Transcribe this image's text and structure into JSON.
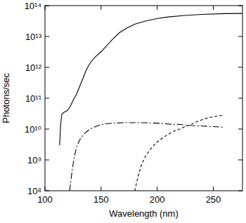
{
  "chart_data": {
    "type": "line",
    "x_label": "Wavelength (nm)",
    "y_label": "Photons/sec",
    "log": "y",
    "grid": false,
    "xlim": [
      100,
      276
    ],
    "ylim": [
      100000000.0,
      100000000000000.0
    ],
    "xticks": [
      100,
      150,
      200,
      250
    ],
    "yticks": [
      {
        "value": 100000000.0,
        "label": "10⁸"
      },
      {
        "value": 1000000000.0,
        "label": "10⁹"
      },
      {
        "value": 10000000000.0,
        "label": "10¹⁰"
      },
      {
        "value": 100000000000.0,
        "label": "10¹¹"
      },
      {
        "value": 1000000000000.0,
        "label": "10¹²"
      },
      {
        "value": 10000000000000.0,
        "label": "10¹³"
      },
      {
        "value": 100000000000000.0,
        "label": "10¹⁴"
      }
    ],
    "series": [
      {
        "color": "#000000",
        "line_style": "solid",
        "x": [
          113,
          114,
          115,
          117,
          120,
          122,
          124,
          126,
          128,
          130,
          132,
          134,
          136,
          138,
          141,
          145,
          150,
          155,
          160,
          166,
          172,
          180,
          190,
          200,
          210,
          225,
          240,
          260,
          276
        ],
        "values": [
          3000000000.0,
          15000000000.0,
          30000000000.0,
          35000000000.0,
          40000000000.0,
          50000000000.0,
          70000000000.0,
          100000000000.0,
          130000000000.0,
          200000000000.0,
          300000000000.0,
          450000000000.0,
          700000000000.0,
          1000000000000.0,
          1500000000000.0,
          2200000000000.0,
          3200000000000.0,
          5000000000000.0,
          8000000000000.0,
          13000000000000.0,
          18000000000000.0,
          25000000000000.0,
          32000000000000.0,
          38000000000000.0,
          43000000000000.0,
          48000000000000.0,
          52000000000000.0,
          55000000000000.0,
          56000000000000.0
        ]
      },
      {
        "color": "#000000",
        "line_style": "dashdot",
        "x": [
          122,
          124,
          126,
          128,
          131,
          135,
          140,
          145,
          150,
          160,
          170,
          180,
          190,
          200,
          210,
          220,
          230,
          240,
          250,
          260
        ],
        "values": [
          100000000.0,
          400000000.0,
          1200000000.0,
          2500000000.0,
          4500000000.0,
          7000000000.0,
          10000000000.0,
          12000000000.0,
          14000000000.0,
          15500000000.0,
          16000000000.0,
          16000000000.0,
          16000000000.0,
          15500000000.0,
          14500000000.0,
          14000000000.0,
          13000000000.0,
          12500000000.0,
          12000000000.0,
          11500000000.0
        ]
      },
      {
        "color": "#000000",
        "line_style": "dashed",
        "x": [
          180,
          183,
          186,
          190,
          195,
          200,
          205,
          210,
          215,
          220,
          225,
          230,
          235,
          240,
          245,
          250,
          255,
          259
        ],
        "values": [
          100000000.0,
          300000000.0,
          700000000.0,
          1400000000.0,
          2500000000.0,
          3800000000.0,
          5200000000.0,
          6800000000.0,
          8500000000.0,
          10000000000.0,
          12000000000.0,
          14000000000.0,
          17000000000.0,
          20000000000.0,
          23000000000.0,
          25000000000.0,
          27000000000.0,
          28000000000.0
        ]
      }
    ]
  }
}
